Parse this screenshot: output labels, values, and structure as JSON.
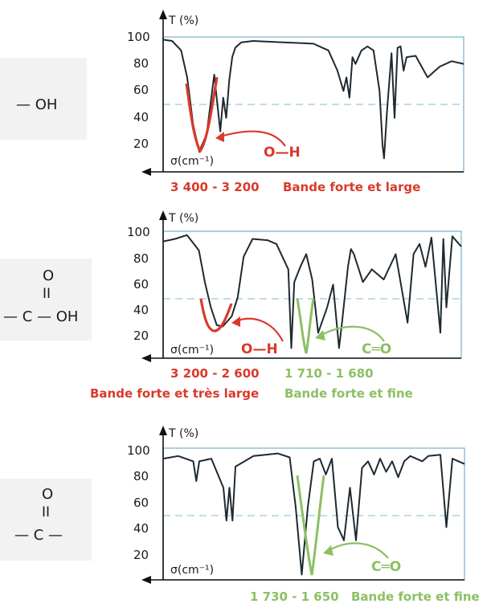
{
  "colors": {
    "red": "#d93a2b",
    "green": "#8cc063",
    "curve": "#1e2a30",
    "frame": "#7fb7cf",
    "dash": "#9cc6da"
  },
  "panels": [
    {
      "formula": {
        "top_letter": "",
        "double_bond": "",
        "line": "— OH"
      },
      "y_axis_label": "T (%)",
      "x_axis_label": "σ(cm⁻¹)",
      "y_ticks": [
        "100",
        "80",
        "60",
        "40",
        "20"
      ],
      "annotations": [
        {
          "text": "O—H",
          "color": "red"
        }
      ],
      "ranges": [
        {
          "text": "3 400 - 3 200",
          "color": "red"
        },
        {
          "text": "Bande forte et large",
          "color": "red"
        }
      ]
    },
    {
      "formula": {
        "top_letter": "O",
        "double_bond": "II",
        "line": "— C — OH"
      },
      "y_axis_label": "T (%)",
      "x_axis_label": "σ(cm⁻¹)",
      "y_ticks": [
        "100",
        "80",
        "60",
        "40",
        "20"
      ],
      "annotations": [
        {
          "text": "O—H",
          "color": "red"
        },
        {
          "text": "C═O",
          "color": "green"
        }
      ],
      "ranges": [
        {
          "text": "3 200 - 2 600",
          "color": "red"
        },
        {
          "text": "1 710 - 1 680",
          "color": "green"
        },
        {
          "text": "Bande forte et très large",
          "color": "red"
        },
        {
          "text": "Bande forte et fine",
          "color": "green"
        }
      ]
    },
    {
      "formula": {
        "top_letter": "O",
        "double_bond": "II",
        "line": "— C —"
      },
      "y_axis_label": "T (%)",
      "x_axis_label": "σ(cm⁻¹)",
      "y_ticks": [
        "100",
        "80",
        "60",
        "40",
        "20"
      ],
      "annotations": [
        {
          "text": "C═O",
          "color": "green"
        }
      ],
      "ranges": [
        {
          "text": "1 730 - 1 650",
          "color": "green"
        },
        {
          "text": "Bande forte et fine",
          "color": "green"
        }
      ]
    }
  ],
  "chart_data": [
    {
      "type": "line",
      "title": "",
      "ylabel": "T (%)",
      "xlabel": "σ(cm⁻¹)",
      "ylim": [
        0,
        105
      ],
      "x_direction": "decreasing wavenumber to the right",
      "reference_line_y": 50,
      "highlight_band": {
        "label": "O—H",
        "range_cm1": [
          3400,
          3200
        ],
        "color": "red"
      },
      "x": [
        0.0,
        0.03,
        0.06,
        0.08,
        0.1,
        0.12,
        0.145,
        0.17,
        0.19,
        0.2,
        0.21,
        0.22,
        0.23,
        0.24,
        0.26,
        0.3,
        0.4,
        0.5,
        0.55,
        0.58,
        0.6,
        0.61,
        0.62,
        0.63,
        0.64,
        0.66,
        0.68,
        0.7,
        0.72,
        0.73,
        0.735,
        0.745,
        0.76,
        0.77,
        0.78,
        0.79,
        0.8,
        0.81,
        0.84,
        0.88,
        0.92,
        0.96,
        1.0
      ],
      "y": [
        98,
        97,
        90,
        70,
        35,
        15,
        28,
        72,
        30,
        55,
        40,
        68,
        85,
        92,
        96,
        97,
        96,
        95,
        90,
        75,
        60,
        70,
        55,
        85,
        80,
        90,
        93,
        90,
        60,
        20,
        10,
        45,
        88,
        40,
        92,
        93,
        75,
        85,
        86,
        70,
        78,
        82,
        80
      ]
    },
    {
      "type": "line",
      "title": "",
      "ylabel": "T (%)",
      "xlabel": "σ(cm⁻¹)",
      "ylim": [
        0,
        105
      ],
      "x_direction": "decreasing wavenumber to the right",
      "reference_line_y": 50,
      "highlight_bands": [
        {
          "label": "O—H",
          "range_cm1": [
            3200,
            2600
          ],
          "color": "red"
        },
        {
          "label": "C═O",
          "range_cm1": [
            1710,
            1680
          ],
          "color": "green"
        }
      ],
      "x": [
        0.0,
        0.04,
        0.08,
        0.12,
        0.14,
        0.16,
        0.18,
        0.2,
        0.23,
        0.25,
        0.27,
        0.3,
        0.35,
        0.38,
        0.4,
        0.42,
        0.43,
        0.44,
        0.46,
        0.48,
        0.5,
        0.52,
        0.55,
        0.57,
        0.59,
        0.6,
        0.62,
        0.63,
        0.64,
        0.67,
        0.7,
        0.74,
        0.78,
        0.82,
        0.84,
        0.86,
        0.88,
        0.9,
        0.93,
        0.94,
        0.95,
        0.97,
        1.0
      ],
      "y": [
        92,
        94,
        97,
        85,
        60,
        40,
        26,
        25,
        33,
        48,
        80,
        94,
        93,
        90,
        80,
        70,
        8,
        60,
        72,
        82,
        62,
        20,
        40,
        58,
        8,
        28,
        72,
        86,
        82,
        60,
        70,
        62,
        82,
        28,
        82,
        90,
        72,
        95,
        20,
        94,
        40,
        96,
        88
      ]
    },
    {
      "type": "line",
      "title": "",
      "ylabel": "T (%)",
      "xlabel": "σ(cm⁻¹)",
      "ylim": [
        0,
        105
      ],
      "x_direction": "decreasing wavenumber to the right",
      "reference_line_y": 50,
      "highlight_band": {
        "label": "C═O",
        "range_cm1": [
          1730,
          1650
        ],
        "color": "green"
      },
      "x": [
        0.0,
        0.05,
        0.1,
        0.11,
        0.12,
        0.16,
        0.2,
        0.21,
        0.22,
        0.23,
        0.24,
        0.3,
        0.34,
        0.38,
        0.42,
        0.44,
        0.46,
        0.48,
        0.5,
        0.52,
        0.54,
        0.56,
        0.58,
        0.6,
        0.62,
        0.64,
        0.66,
        0.68,
        0.7,
        0.72,
        0.74,
        0.76,
        0.78,
        0.8,
        0.82,
        0.84,
        0.86,
        0.88,
        0.92,
        0.94,
        0.96,
        1.0
      ],
      "y": [
        92,
        94,
        90,
        75,
        90,
        92,
        70,
        45,
        70,
        45,
        86,
        94,
        95,
        96,
        93,
        55,
        4,
        55,
        90,
        92,
        80,
        92,
        40,
        30,
        70,
        30,
        85,
        90,
        80,
        92,
        82,
        90,
        78,
        90,
        94,
        92,
        90,
        94,
        95,
        40,
        92,
        88
      ]
    }
  ]
}
